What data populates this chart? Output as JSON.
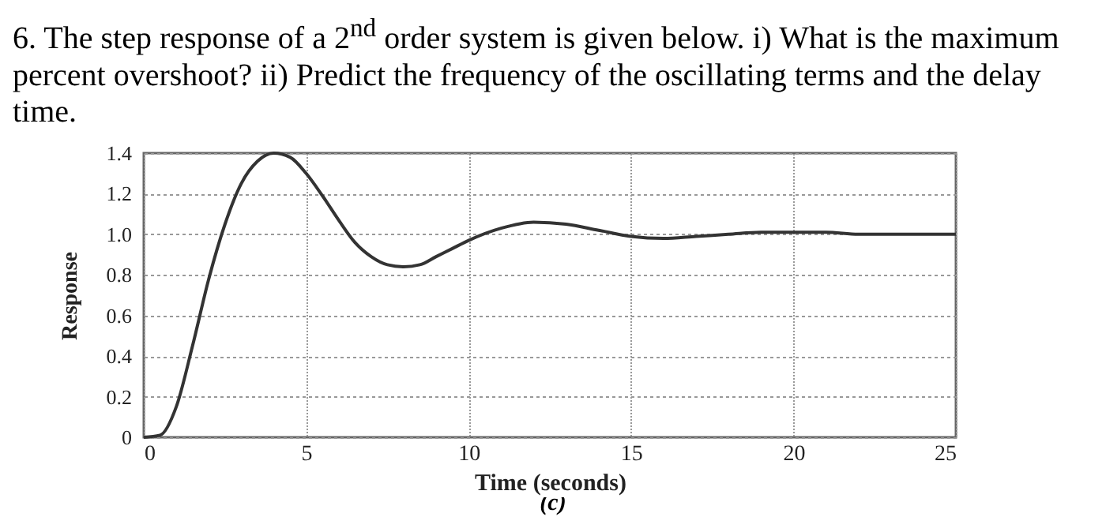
{
  "chart_data": {
    "type": "line",
    "title": "6. The step response of a 2$^{nd}$ order system is given below. i) What is the maximum percent overshoot? ii) Predict the frequency of the oscillating terms and the delay time.",
    "xlabel": "Time (seconds)",
    "ylabel": "Response",
    "annotations": [
      "(c)"
    ],
    "x": [
      0,
      0.5,
      1,
      1.5,
      2,
      2.5,
      3,
      3.5,
      4,
      4.5,
      5,
      5.5,
      6,
      6.5,
      7,
      7.5,
      8,
      8.5,
      9,
      9.5,
      10,
      11,
      12,
      13,
      14,
      15,
      16,
      17,
      18,
      19,
      20,
      21,
      22,
      23,
      25
    ],
    "series": [
      {
        "color": "#333333",
        "values": [
          0,
          0.01,
          0.15,
          0.45,
          0.78,
          1.05,
          1.25,
          1.36,
          1.4,
          1.38,
          1.3,
          1.19,
          1.07,
          0.96,
          0.89,
          0.85,
          0.84,
          0.85,
          0.89,
          0.93,
          0.97,
          1.03,
          1.06,
          1.05,
          1.02,
          0.99,
          0.98,
          0.99,
          1.0,
          1.01,
          1.01,
          1.01,
          1.0,
          1.0,
          1.0
        ]
      }
    ],
    "xlim": [
      0,
      25
    ],
    "xticks": [
      0,
      5,
      10,
      15,
      20,
      25
    ],
    "ylim": [
      0,
      1.4
    ],
    "yticks": [
      0,
      0.2,
      {
        "value": 1,
        "label": "1.0"
      },
      0.4,
      0.6,
      0.8,
      1.2,
      1.4
    ],
    "grid": true,
    "line_style": "solid",
    "legend": false
  }
}
